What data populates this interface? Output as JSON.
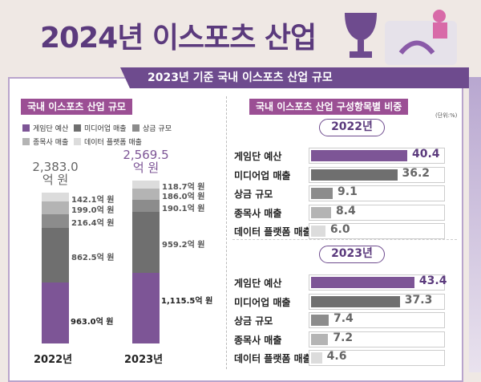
{
  "title": "2024년 이스포츠 산업",
  "banner": "2023년 기준 국내 이스포츠 산업 규모",
  "left_section": "국내 이스포츠 산업 규모",
  "right_section": "국내 이스포츠 산업 구성항목별 비중",
  "unit": "(단위:%)",
  "colors": {
    "game_team": "#7d5596",
    "media": "#6f6f6f",
    "prize": "#8c8c8c",
    "team_revenue": "#b4b4b4",
    "data_platform": "#dcdcdc"
  },
  "chart_data": [
    {
      "type": "bar",
      "stacked": true,
      "categories": [
        "2022년",
        "2023년"
      ],
      "totals": [
        "2,383.0\n억 원",
        "2,569.5\n억 원"
      ],
      "total_labels": [
        [
          "2,383.0",
          "억 원"
        ],
        [
          "2,569.5",
          "억 원"
        ]
      ],
      "series": [
        {
          "name": "게임단 예산",
          "values": [
            963.0,
            1115.5
          ],
          "labels": [
            "963.0억 원",
            "1,115.5억 원"
          ]
        },
        {
          "name": "미디어업 매출",
          "values": [
            862.5,
            959.2
          ],
          "labels": [
            "862.5억 원",
            "959.2억 원"
          ]
        },
        {
          "name": "상금 규모",
          "values": [
            216.4,
            190.1
          ],
          "labels": [
            "216.4억 원",
            "190.1억 원"
          ]
        },
        {
          "name": "종목사 매출",
          "values": [
            199.0,
            186.0
          ],
          "labels": [
            "199.0억 원",
            "186.0억 원"
          ]
        },
        {
          "name": "데이터 플랫폼 매출",
          "values": [
            142.1,
            118.7
          ],
          "labels": [
            "142.1억 원",
            "118.7억 원"
          ]
        }
      ]
    },
    {
      "type": "bar",
      "orientation": "horizontal",
      "title": "2022년",
      "categories": [
        "게임단 예산",
        "미디어업 매출",
        "상금 규모",
        "종목사 매출",
        "데이터 플랫폼 매출"
      ],
      "values": [
        40.4,
        36.2,
        9.1,
        8.4,
        6.0
      ],
      "labels": [
        "40.4",
        "36.2",
        "9.1",
        "8.4",
        "6.0"
      ]
    },
    {
      "type": "bar",
      "orientation": "horizontal",
      "title": "2023년",
      "categories": [
        "게임단 예산",
        "미디어업 매출",
        "상금 규모",
        "종목사 매출",
        "데이터 플랫폼 매출"
      ],
      "values": [
        43.4,
        37.3,
        7.4,
        7.2,
        4.6
      ],
      "labels": [
        "43.4",
        "37.3",
        "7.4",
        "7.2",
        "4.6"
      ]
    }
  ]
}
